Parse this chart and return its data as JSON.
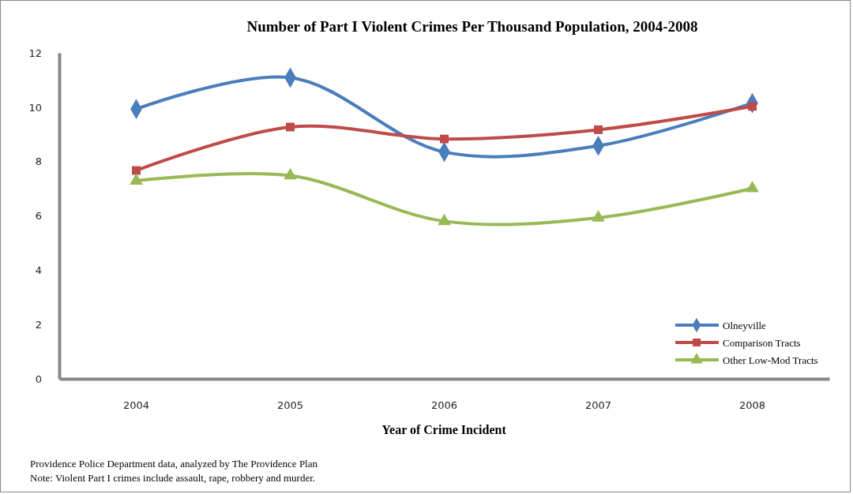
{
  "chart_data": {
    "type": "line",
    "title": "Number of Part I Violent Crimes Per Thousand Population,  2004-2008",
    "xlabel": "Year of Crime Incident",
    "categories": [
      "2004",
      "2005",
      "2006",
      "2007",
      "2008"
    ],
    "series": [
      {
        "name": "Olneyville",
        "color": "#4a7ebb",
        "marker": "diamond",
        "values": [
          9.93,
          11.09,
          8.35,
          8.58,
          10.15
        ]
      },
      {
        "name": "Comparison Tracts",
        "color": "#be4b48",
        "marker": "square",
        "values": [
          7.67,
          9.27,
          8.83,
          9.17,
          10.03
        ]
      },
      {
        "name": "Other Low-Mod Tracts",
        "color": "#98b954",
        "marker": "triangle",
        "values": [
          7.29,
          7.48,
          5.8,
          5.93,
          7.01
        ]
      }
    ],
    "ylim": [
      0,
      12
    ],
    "yticks": [
      0,
      2,
      4,
      6,
      8,
      10,
      12
    ],
    "grid": false,
    "legend": "bottom right",
    "annotations": [
      "Providence Police Department data, analyzed by The Providence Plan",
      "Note: Violent Part I crimes include assault, rape, robbery and murder."
    ]
  }
}
